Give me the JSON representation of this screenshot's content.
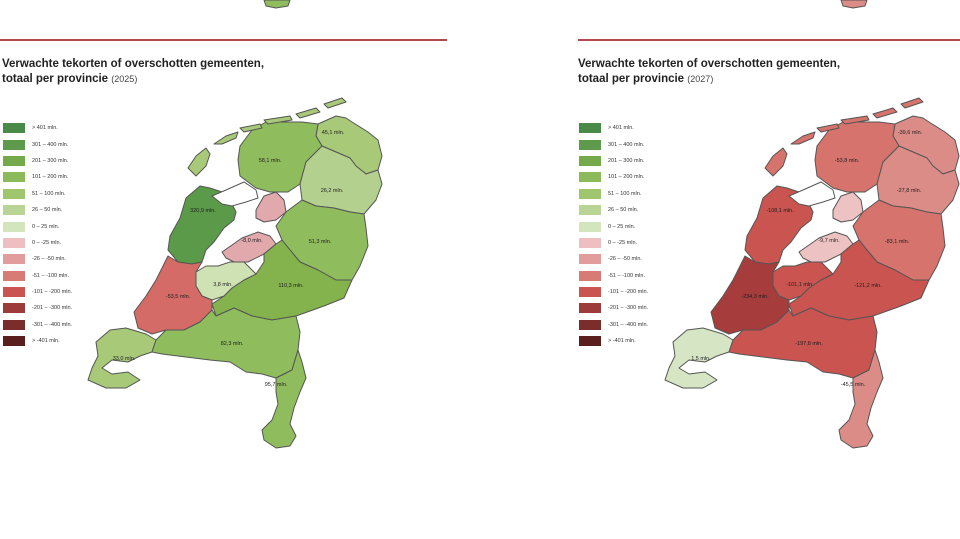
{
  "maps": [
    {
      "title_line1": "Verwachte tekorten of overschotten gemeenten,",
      "title_line2": "totaal per provincie",
      "year": "(2025)",
      "provinces": {
        "groningen": {
          "label": "45,1 mln.",
          "color": "#a7c978"
        },
        "friesland": {
          "label": "58,1 mln.",
          "color": "#8fbc5c"
        },
        "drenthe": {
          "label": "26,2 mln.",
          "color": "#b4d08e"
        },
        "noord-holland": {
          "label": "320,9 mln.",
          "color": "#5b9a48"
        },
        "flevoland": {
          "label": "-8,0 mln.",
          "color": "#e2a9ac"
        },
        "flevoland-north": {
          "label": "",
          "color": "#e2a9ac"
        },
        "overijssel": {
          "label": "51,3 mln.",
          "color": "#8fbc5c"
        },
        "gelderland": {
          "label": "110,3 mln.",
          "color": "#84b24c"
        },
        "utrecht": {
          "label": "3,8 mln.",
          "color": "#cfe2b4"
        },
        "zuid-holland": {
          "label": "-53,5 mln.",
          "color": "#d56b66"
        },
        "zeeland": {
          "label": "33,0 mln.",
          "color": "#a7c978"
        },
        "noord-brabant": {
          "label": "82,3 mln.",
          "color": "#8fbc5c"
        },
        "limburg": {
          "label": "95,7 mln.",
          "color": "#8fbc5c"
        },
        "islands": {
          "label": "",
          "color": "#a7c978"
        }
      }
    },
    {
      "title_line1": "Verwachte tekorten of overschotten gemeenten,",
      "title_line2": "totaal per provincie",
      "year": "(2027)",
      "provinces": {
        "groningen": {
          "label": "-39,6 mln.",
          "color": "#dc8c87"
        },
        "friesland": {
          "label": "-53,8 mln.",
          "color": "#d5736c"
        },
        "drenthe": {
          "label": "-27,8 mln.",
          "color": "#dc8c87"
        },
        "noord-holland": {
          "label": "-108,1 mln.",
          "color": "#c95450"
        },
        "flevoland": {
          "label": "-9,7 mln.",
          "color": "#ecc2c3"
        },
        "flevoland-north": {
          "label": "",
          "color": "#ecc2c3"
        },
        "overijssel": {
          "label": "-83,1 mln.",
          "color": "#d5736c"
        },
        "gelderland": {
          "label": "-121,2 mln.",
          "color": "#c95450"
        },
        "utrecht": {
          "label": "-101,1 mln.",
          "color": "#c95450"
        },
        "zuid-holland": {
          "label": "-234,3 mln.",
          "color": "#a63d3c"
        },
        "zeeland": {
          "label": "1,5 mln.",
          "color": "#d6e6c4"
        },
        "noord-brabant": {
          "label": "-197,8 mln.",
          "color": "#c95450"
        },
        "limburg": {
          "label": "-45,5 mln.",
          "color": "#dc8c87"
        },
        "islands": {
          "label": "",
          "color": "#d5736c"
        }
      }
    }
  ],
  "legend": [
    {
      "label": "> 401 mln.",
      "color": "#4a8a48"
    },
    {
      "label": "301 – 400 mln.",
      "color": "#5e9a4c"
    },
    {
      "label": "201 – 300 mln.",
      "color": "#74a94c"
    },
    {
      "label": "101 – 200 mln.",
      "color": "#8cb95a"
    },
    {
      "label": "51 – 100 mln.",
      "color": "#a0c56f"
    },
    {
      "label": "26 – 50 mln.",
      "color": "#b9d595"
    },
    {
      "label": "0 – 25 mln.",
      "color": "#d3e5bc"
    },
    {
      "label": "0 – -25 mln.",
      "color": "#eebfc1"
    },
    {
      "label": "-26 – -50 mln.",
      "color": "#e39c9c"
    },
    {
      "label": "-51 – -100 mln.",
      "color": "#d87a76"
    },
    {
      "label": "-101 – -200 mln.",
      "color": "#c95450"
    },
    {
      "label": "-201 – -300 mln.",
      "color": "#9c3c3a"
    },
    {
      "label": "-301 – -400 mln.",
      "color": "#7b2d2b"
    },
    {
      "label": "> -401 mln.",
      "color": "#5a1f1d"
    }
  ]
}
